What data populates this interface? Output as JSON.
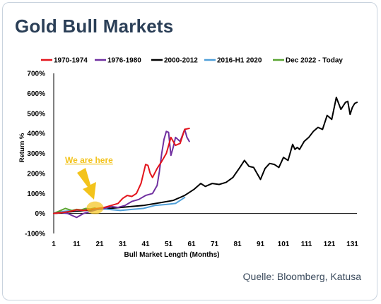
{
  "header": {
    "title": "Gold Bull Markets"
  },
  "footer": {
    "source": "Quelle: Bloomberg, Katusa"
  },
  "annotation": {
    "text": "We are here",
    "color": "#f3c31b"
  },
  "chart_data": {
    "type": "line",
    "xlabel": "Bull Market Length (Months)",
    "ylabel": "Return %",
    "xlim": [
      1,
      133
    ],
    "ylim": [
      -100,
      700
    ],
    "x_ticks": [
      1,
      11,
      21,
      31,
      41,
      51,
      61,
      71,
      81,
      91,
      101,
      111,
      121,
      131
    ],
    "y_ticks": [
      -100,
      0,
      100,
      200,
      300,
      400,
      500,
      600,
      700
    ],
    "y_tick_labels": [
      "-100%",
      "0%",
      "100%",
      "200%",
      "300%",
      "400%",
      "500%",
      "600%",
      "700%"
    ],
    "grid": false,
    "legend_position": "top",
    "series": [
      {
        "name": "1970-1974",
        "color": "#e3141c",
        "x": [
          1,
          5,
          8,
          11,
          14,
          17,
          20,
          23,
          26,
          29,
          31,
          33,
          35,
          37,
          39,
          41,
          42,
          43,
          44,
          46,
          48,
          50,
          52,
          54,
          56,
          58,
          60
        ],
        "y": [
          0,
          5,
          10,
          18,
          15,
          20,
          25,
          30,
          40,
          50,
          75,
          90,
          85,
          100,
          150,
          245,
          240,
          200,
          180,
          225,
          260,
          300,
          380,
          340,
          350,
          420,
          425
        ]
      },
      {
        "name": "1976-1980",
        "color": "#7030a0",
        "x": [
          1,
          4,
          7,
          9,
          11,
          14,
          17,
          20,
          23,
          26,
          29,
          32,
          35,
          38,
          41,
          44,
          46,
          47,
          48,
          49,
          50,
          51,
          52,
          53,
          54,
          56,
          58,
          59,
          60
        ],
        "y": [
          0,
          5,
          0,
          -10,
          -20,
          0,
          10,
          20,
          25,
          35,
          30,
          40,
          60,
          70,
          90,
          100,
          140,
          210,
          300,
          370,
          410,
          405,
          290,
          330,
          380,
          360,
          420,
          380,
          360
        ]
      },
      {
        "name": "2000-2012",
        "color": "#000000",
        "x": [
          1,
          10,
          20,
          30,
          40,
          48,
          53,
          58,
          62,
          65,
          67,
          70,
          73,
          76,
          79,
          82,
          84,
          86,
          88,
          90,
          91,
          93,
          95,
          97,
          99,
          101,
          103,
          105,
          106,
          107,
          108,
          110,
          112,
          114,
          116,
          118,
          120,
          122,
          124,
          126,
          128,
          129,
          130,
          131,
          132,
          133
        ],
        "y": [
          0,
          10,
          20,
          30,
          40,
          55,
          65,
          90,
          120,
          150,
          135,
          150,
          145,
          155,
          180,
          230,
          265,
          235,
          230,
          190,
          170,
          225,
          250,
          245,
          230,
          280,
          265,
          345,
          320,
          330,
          320,
          360,
          380,
          410,
          430,
          420,
          490,
          470,
          580,
          520,
          555,
          560,
          495,
          530,
          550,
          555
        ]
      },
      {
        "name": "2016-H1 2020",
        "color": "#4f9fd8",
        "x": [
          1,
          5,
          10,
          15,
          20,
          25,
          30,
          35,
          40,
          45,
          50,
          54,
          56,
          58
        ],
        "y": [
          0,
          10,
          15,
          20,
          25,
          20,
          15,
          20,
          25,
          40,
          45,
          50,
          65,
          80
        ]
      },
      {
        "name": "Dec 2022 - Today",
        "color": "#5aa532",
        "x": [
          1,
          4,
          6,
          9,
          11,
          13,
          15,
          17,
          19
        ],
        "y": [
          0,
          15,
          25,
          15,
          20,
          18,
          25,
          22,
          28
        ]
      }
    ]
  }
}
